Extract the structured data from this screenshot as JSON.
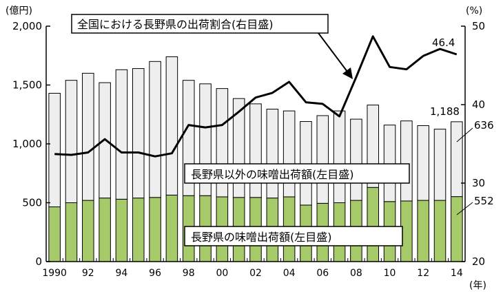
{
  "chart_data": {
    "type": "bar",
    "categories": [
      "1990",
      "1991",
      "1992",
      "1993",
      "1994",
      "1995",
      "1996",
      "1997",
      "1998",
      "1999",
      "2000",
      "2001",
      "2002",
      "2003",
      "2004",
      "2005",
      "2006",
      "2007",
      "2008",
      "2009",
      "2010",
      "2011",
      "2012",
      "2013",
      "2014"
    ],
    "x_tick_labels": [
      "1990",
      "",
      "92",
      "",
      "94",
      "",
      "96",
      "",
      "98",
      "",
      "00",
      "",
      "02",
      "",
      "04",
      "",
      "06",
      "",
      "08",
      "",
      "10",
      "",
      "12",
      "",
      "14"
    ],
    "x_unit": "(年)",
    "left_axis": {
      "unit": "(億円)",
      "ylim": [
        0,
        2000
      ],
      "ticks": [
        0,
        500,
        1000,
        1500,
        2000
      ],
      "tick_labels": [
        "0",
        "500",
        "1,000",
        "1,500",
        "2,000"
      ]
    },
    "right_axis": {
      "unit": "(%)",
      "ylim": [
        20,
        50
      ],
      "ticks": [
        20,
        30,
        40,
        50
      ],
      "tick_labels": [
        "20",
        "30",
        "40",
        "50"
      ]
    },
    "series": [
      {
        "name": "長野県の味噌出荷額(左目盛)",
        "kind": "bar",
        "axis": "left",
        "color": "#a6c96a",
        "values": [
          465,
          500,
          520,
          540,
          530,
          540,
          545,
          565,
          560,
          560,
          550,
          545,
          545,
          540,
          550,
          480,
          495,
          500,
          520,
          630,
          510,
          515,
          520,
          520,
          552
        ]
      },
      {
        "name": "長野県以外の味噌出荷額(左目盛)",
        "kind": "bar",
        "axis": "left",
        "color": "#eeeeee",
        "values": [
          965,
          1040,
          1080,
          980,
          1100,
          1100,
          1155,
          1175,
          980,
          950,
          920,
          840,
          795,
          755,
          730,
          710,
          745,
          780,
          690,
          700,
          650,
          680,
          635,
          605,
          636
        ]
      },
      {
        "name": "全国における長野県の出荷割合(右目盛)",
        "kind": "line",
        "axis": "right",
        "color": "#000000",
        "values": [
          33.7,
          33.6,
          33.9,
          35.6,
          33.9,
          33.9,
          33.4,
          33.8,
          37.4,
          37.1,
          37.4,
          39.1,
          40.9,
          41.5,
          42.9,
          40.3,
          40.1,
          38.5,
          43.5,
          48.7,
          44.8,
          44.5,
          46.2,
          47.1,
          46.4
        ]
      }
    ],
    "annotations": {
      "line_label": "全国における長野県の出荷割合(右目盛)",
      "other_label": "長野県以外の味噌出荷額(左目盛)",
      "nagano_label": "長野県の味噌出荷額(左目盛)",
      "total_2014": "1,188",
      "other_2014": "636",
      "nagano_2014": "552",
      "ratio_2014": "46.4"
    },
    "grid": false
  }
}
